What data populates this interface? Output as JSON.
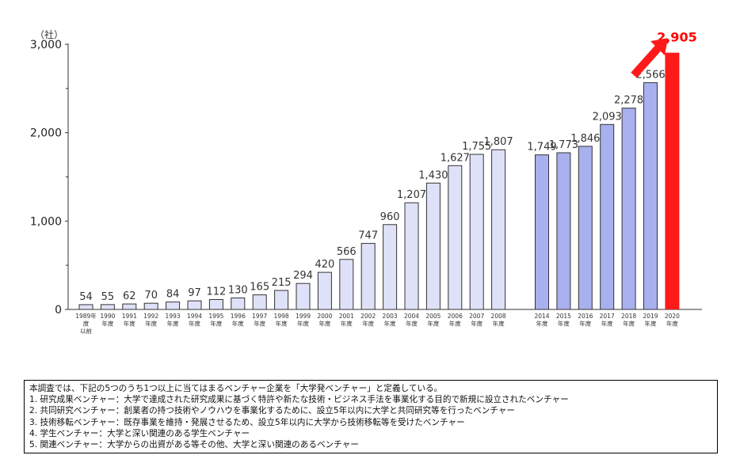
{
  "chart_data": {
    "type": "bar",
    "unit_label": "（社）",
    "ylim": [
      0,
      3000
    ],
    "yticks": [
      0,
      1000,
      2000,
      3000
    ],
    "ytick_labels": [
      "0",
      "1,000",
      "2,000",
      "3,000"
    ],
    "categories": [
      [
        "1989年",
        "度",
        "以前"
      ],
      [
        "1990",
        "年度"
      ],
      [
        "1991",
        "年度"
      ],
      [
        "1992",
        "年度"
      ],
      [
        "1993",
        "年度"
      ],
      [
        "1994",
        "年度"
      ],
      [
        "1995",
        "年度"
      ],
      [
        "1996",
        "年度"
      ],
      [
        "1997",
        "年度"
      ],
      [
        "1998",
        "年度"
      ],
      [
        "1999",
        "年度"
      ],
      [
        "2000",
        "年度"
      ],
      [
        "2001",
        "年度"
      ],
      [
        "2002",
        "年度"
      ],
      [
        "2003",
        "年度"
      ],
      [
        "2004",
        "年度"
      ],
      [
        "2005",
        "年度"
      ],
      [
        "2006",
        "年度"
      ],
      [
        "2007",
        "年度"
      ],
      [
        "2008",
        "年度"
      ],
      [
        "2014",
        "年度"
      ],
      [
        "2015",
        "年度"
      ],
      [
        "2016",
        "年度"
      ],
      [
        "2017",
        "年度"
      ],
      [
        "2018",
        "年度"
      ],
      [
        "2019",
        "年度"
      ],
      [
        "2020",
        "年度"
      ]
    ],
    "values": [
      54,
      55,
      62,
      70,
      84,
      97,
      112,
      130,
      165,
      215,
      294,
      420,
      566,
      747,
      960,
      1207,
      1430,
      1627,
      1755,
      1807,
      1749,
      1773,
      1846,
      2093,
      2278,
      2566,
      2905
    ],
    "value_labels": [
      "54",
      "55",
      "62",
      "70",
      "84",
      "97",
      "112",
      "130",
      "165",
      "215",
      "294",
      "420",
      "566",
      "747",
      "960",
      "1,207",
      "1,430",
      "1,627",
      "1,755",
      "1,807",
      "1,749",
      "1,773",
      "1,846",
      "2,093",
      "2,278",
      "2,566",
      "2,905"
    ],
    "gap_after_index": 19,
    "colors": {
      "early_fill": "#dfe1f8",
      "recent_fill": "#a9b0ee",
      "highlight_fill": "#ff1a1a",
      "bar_stroke": "#333333",
      "highlight_label": "#ff0000",
      "arrow": "#ff1a1a"
    },
    "recent_start_index": 20,
    "highlight_index": 26
  },
  "notes": [
    "本調査では、下記の5つのうち1つ以上に当てはまるベンチャー企業を「大学発ベンチャー」と定義している。",
    "1. 研究成果ベンチャー：大学で達成された研究成果に基づく特許や新たな技術・ビジネス手法を事業化する目的で新規に設立されたベンチャー",
    "2. 共同研究ベンチャー：創業者の持つ技術やノウハウを事業化するために、設立5年以内に大学と共同研究等を行ったベンチャー",
    "3. 技術移転ベンチャー：既存事業を維持・発展させるため、設立5年以内に大学から技術移転等を受けたベンチャー",
    "4. 学生ベンチャー：大学と深い関連のある学生ベンチャー",
    "5. 関連ベンチャー：大学からの出資がある等その他、大学と深い関連のあるベンチャー"
  ]
}
